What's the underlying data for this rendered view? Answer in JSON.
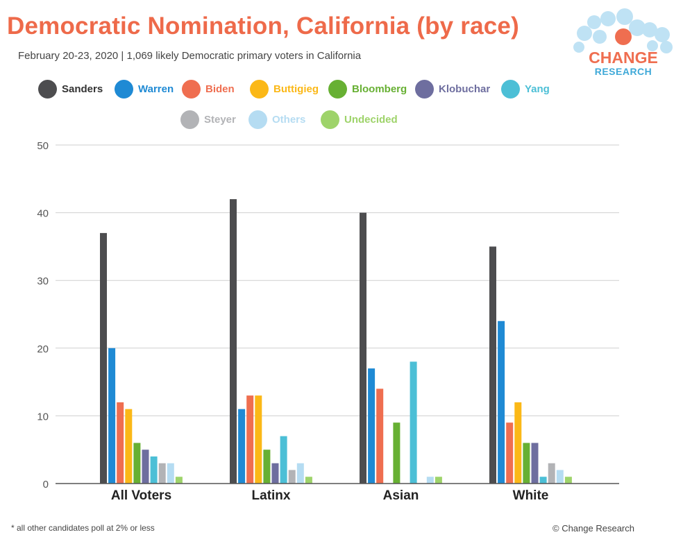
{
  "header": {
    "title": "Democratic Nomination, California (by race)",
    "subtitle": "February 20-23, 2020 | 1,069 likely Democratic primary voters in California"
  },
  "logo": {
    "line1": "CHANGE",
    "line2": "RESEARCH"
  },
  "footer": {
    "note": "* all other candidates poll at 2% or less",
    "credit": "© Change Research"
  },
  "chart_data": {
    "type": "bar",
    "title": "Democratic Nomination, California (by race)",
    "xlabel": "",
    "ylabel": "",
    "ylim": [
      0,
      50
    ],
    "yticks": [
      "0",
      "10",
      "20",
      "30",
      "40",
      "50"
    ],
    "grid": true,
    "legend_position": "top",
    "categories": [
      "All Voters",
      "Latinx",
      "Asian",
      "White"
    ],
    "series": [
      {
        "name": "Sanders",
        "color": "#4d4d4f",
        "values": [
          37,
          42,
          40,
          35
        ]
      },
      {
        "name": "Warren",
        "color": "#1f8ad4",
        "values": [
          20,
          11,
          17,
          24
        ]
      },
      {
        "name": "Biden",
        "color": "#ef6e50",
        "values": [
          12,
          13,
          14,
          9
        ]
      },
      {
        "name": "Buttigieg",
        "color": "#fbb817",
        "values": [
          11,
          13,
          0,
          12
        ]
      },
      {
        "name": "Bloomberg",
        "color": "#67b033",
        "values": [
          6,
          5,
          9,
          6
        ]
      },
      {
        "name": "Klobuchar",
        "color": "#6e6e9f",
        "values": [
          5,
          3,
          0,
          6
        ]
      },
      {
        "name": "Yang",
        "color": "#4cbfd6",
        "values": [
          4,
          7,
          18,
          1
        ]
      },
      {
        "name": "Steyer",
        "color": "#b2b3b6",
        "values": [
          3,
          2,
          0,
          3
        ]
      },
      {
        "name": "Others",
        "color": "#b5dcf2",
        "values": [
          3,
          3,
          1,
          2
        ]
      },
      {
        "name": "Undecided",
        "color": "#9ed36a",
        "values": [
          1,
          1,
          1,
          1
        ]
      }
    ]
  }
}
